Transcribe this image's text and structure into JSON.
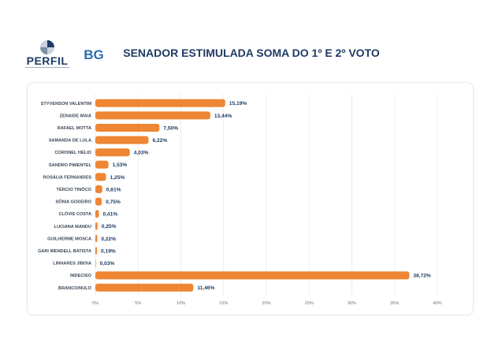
{
  "header": {
    "title": "SENADOR ESTIMULADA SOMA DO 1º E 2º VOTO",
    "perfil_logo_text": "PERFIL",
    "bg_logo_text": "BG"
  },
  "colors": {
    "bar": "#ee8633",
    "grid": "#e6e8ec",
    "title": "#1f3a64"
  },
  "chart_data": {
    "type": "bar",
    "orientation": "horizontal",
    "title": "SENADOR ESTIMULADA SOMA DO 1º E 2º VOTO",
    "categories": [
      "STYVENSON VALENTIM",
      "ZENAIDE MAIA",
      "RAFAEL MOTTA",
      "SAMANDA DE LULA",
      "CORONEL HÉLIO",
      "SANDRO PIMENTEL",
      "ROSÁLIA FERNANDES",
      "TÉRCIO TINÔCO",
      "SÔNIA GODEIRO",
      "CLÓVIS COSTA",
      "LUCIANA MANDU",
      "GUILHERME MOSCA",
      "GARI WENDELL BATISTA",
      "LINHARES JIBOIA",
      "INDECISO",
      "BRANCO/NULO"
    ],
    "values": [
      15.19,
      13.44,
      7.5,
      6.22,
      4.03,
      1.53,
      1.25,
      0.81,
      0.75,
      0.41,
      0.25,
      0.22,
      0.19,
      0.03,
      36.72,
      11.46
    ],
    "labels": [
      "15,19%",
      "13,44%",
      "7,50%",
      "6,22%",
      "4,03%",
      "1,53%",
      "1,25%",
      "0,81%",
      "0,75%",
      "0,41%",
      "0,25%",
      "0,22%",
      "0,19%",
      "0,03%",
      "36,72%",
      "11,46%"
    ],
    "xlim": [
      0,
      40
    ],
    "xticks": [
      0,
      5,
      10,
      15,
      20,
      25,
      30,
      35,
      40
    ],
    "xtick_labels": [
      "0%",
      "5%",
      "10%",
      "15%",
      "20%",
      "25%",
      "30%",
      "35%",
      "40%"
    ],
    "grid": true,
    "legend": "none"
  }
}
